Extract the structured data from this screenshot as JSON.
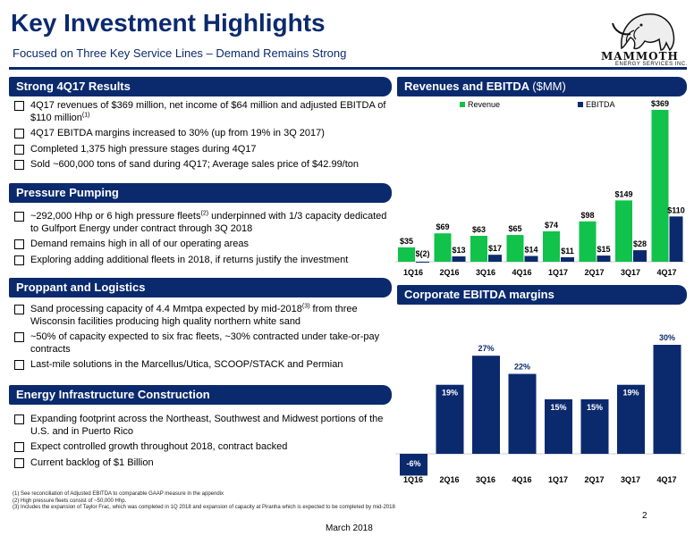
{
  "header": {
    "title": "Key Investment Highlights",
    "subtitle": "Focused on Three Key Service Lines – Demand Remains Strong"
  },
  "logo": {
    "icon": "mammoth-icon",
    "name": "MAMMOTH",
    "tagline": "ENERGY SERVICES INC."
  },
  "sections": {
    "results": {
      "title": "Strong 4Q17 Results",
      "bullets": [
        {
          "text": "4Q17 revenues of $369 million, net income of $64 million and adjusted EBITDA of $110 million",
          "sup": "(1)"
        },
        {
          "text": "4Q17 EBITDA margins increased to 30% (up from 19% in 3Q 2017)"
        },
        {
          "text": "Completed 1,375 high pressure stages during 4Q17"
        },
        {
          "text": "Sold ~600,000 tons of sand during 4Q17; Average sales price of $42.99/ton"
        }
      ]
    },
    "pumping": {
      "title": "Pressure Pumping",
      "bullets": [
        {
          "text_a": "~292,000 Hhp or 6 high pressure fleets",
          "sup": "(2)",
          "text_b": " underpinned with 1/3 capacity dedicated to Gulfport Energy under contract through 3Q 2018"
        },
        {
          "text": "Demand remains high in all of our operating areas"
        },
        {
          "text": "Exploring adding additional fleets in 2018, if returns justify the investment"
        }
      ]
    },
    "proppant": {
      "title": "Proppant and Logistics",
      "bullets": [
        {
          "text_a": "Sand processing capacity of 4.4 Mmtpa expected by mid-2018",
          "sup": "(3)",
          "text_b": " from three Wisconsin facilities producing high quality northern white sand"
        },
        {
          "text": "~50% of capacity expected to six frac fleets, ~30% contracted under take-or-pay contracts"
        },
        {
          "text": "Last-mile solutions in the Marcellus/Utica, SCOOP/STACK and Permian"
        }
      ]
    },
    "infrastructure": {
      "title": "Energy Infrastructure Construction",
      "bullets": [
        {
          "text": "Expanding footprint across the Northeast, Southwest and Midwest portions of the U.S. and in Puerto Rico"
        },
        {
          "text": "Expect controlled growth throughout 2018, contract backed"
        },
        {
          "text": "Current backlog of $1 Billion"
        }
      ]
    },
    "revenue_chart": {
      "title": "Revenues and EBITDA",
      "unit": "($MM)"
    },
    "margin_chart": {
      "title": "Corporate EBITDA margins"
    }
  },
  "chart_data": [
    {
      "type": "bar",
      "title": "Revenues and EBITDA ($MM)",
      "categories": [
        "1Q16",
        "2Q16",
        "3Q16",
        "4Q16",
        "1Q17",
        "2Q17",
        "3Q17",
        "4Q17"
      ],
      "series": [
        {
          "name": "Revenue",
          "values": [
            35,
            69,
            63,
            65,
            74,
            98,
            149,
            369
          ],
          "labels": [
            "$35",
            "$69",
            "$63",
            "$65",
            "$74",
            "$98",
            "$149",
            "$369"
          ]
        },
        {
          "name": "EBITDA",
          "values": [
            -2,
            13,
            17,
            14,
            11,
            15,
            28,
            110
          ],
          "labels": [
            "$(2)",
            "$13",
            "$17",
            "$14",
            "$11",
            "$15",
            "$28",
            "$110"
          ]
        }
      ],
      "legend": "top",
      "grid": false,
      "colors": {
        "Revenue": "#11c24b",
        "EBITDA": "#0b2a6e"
      }
    },
    {
      "type": "bar",
      "title": "Corporate EBITDA margins",
      "categories": [
        "1Q16",
        "2Q16",
        "3Q16",
        "4Q16",
        "1Q17",
        "2Q17",
        "3Q17",
        "4Q17"
      ],
      "values": [
        -6,
        19,
        27,
        22,
        15,
        15,
        19,
        30
      ],
      "labels": [
        "-6%",
        "19%",
        "27%",
        "22%",
        "15%",
        "15%",
        "19%",
        "30%"
      ],
      "grid": false,
      "color": "#0b2a6e"
    }
  ],
  "footnotes": [
    "(1) See reconciliation of Adjusted EBITDA to comparable GAAP measure in the appendix",
    "(2) High pressure fleets consist of ~50,000 Hhp.",
    "(3) Includes the expansion of Taylor Frac, which was completed in 1Q 2018 and expansion of capacity at Piranha which is expected to be completed by mid-2018"
  ],
  "footer": {
    "page": "2",
    "date": "March 2018"
  },
  "colors": {
    "navy": "#0b2a6e",
    "green": "#11c24b"
  }
}
